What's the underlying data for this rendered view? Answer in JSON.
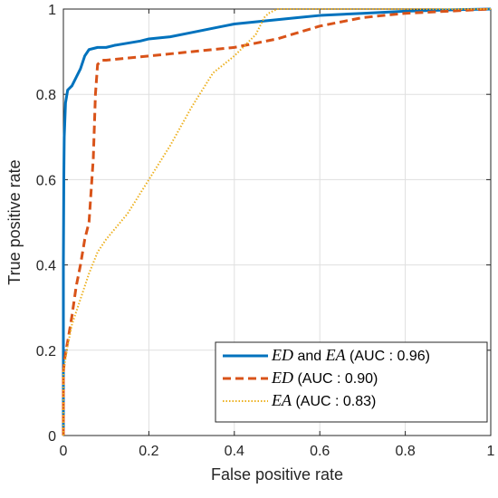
{
  "chart_data": {
    "type": "line",
    "xlabel": "False positive rate",
    "ylabel": "True positive rate",
    "xlim": [
      0,
      1
    ],
    "ylim": [
      0,
      1
    ],
    "xticks": [
      "0",
      "0.2",
      "0.4",
      "0.6",
      "0.8",
      "1"
    ],
    "yticks": [
      "0",
      "0.2",
      "0.4",
      "0.6",
      "0.8",
      "1"
    ],
    "grid": true,
    "legend_position": "bottom-right",
    "series": [
      {
        "name": "ED and EA (AUC : 0.96)",
        "legend_parts": [
          {
            "text": "ED",
            "italic": true
          },
          {
            "text": " and ",
            "italic": false
          },
          {
            "text": "EA",
            "italic": true
          },
          {
            "text": " (AUC : 0.96)",
            "italic": false
          }
        ],
        "color": "#0072BD",
        "style": "solid",
        "x": [
          0,
          0,
          0.001,
          0.002,
          0.005,
          0.01,
          0.02,
          0.03,
          0.04,
          0.05,
          0.06,
          0.08,
          0.1,
          0.12,
          0.15,
          0.18,
          0.2,
          0.25,
          0.3,
          0.35,
          0.4,
          0.45,
          0.5,
          0.55,
          0.6,
          0.7,
          0.8,
          0.9,
          1.0
        ],
        "y": [
          0,
          0.4,
          0.6,
          0.7,
          0.78,
          0.81,
          0.82,
          0.84,
          0.86,
          0.89,
          0.905,
          0.91,
          0.91,
          0.915,
          0.92,
          0.925,
          0.93,
          0.935,
          0.945,
          0.955,
          0.965,
          0.97,
          0.975,
          0.98,
          0.985,
          0.99,
          0.995,
          0.998,
          1.0
        ]
      },
      {
        "name": "ED (AUC : 0.90)",
        "legend_parts": [
          {
            "text": "ED",
            "italic": true
          },
          {
            "text": " (AUC : 0.90)",
            "italic": false
          }
        ],
        "color": "#D95319",
        "style": "dashed",
        "x": [
          0,
          0,
          0.003,
          0.01,
          0.02,
          0.03,
          0.04,
          0.05,
          0.06,
          0.07,
          0.075,
          0.08,
          0.09,
          0.1,
          0.15,
          0.2,
          0.3,
          0.4,
          0.45,
          0.5,
          0.55,
          0.6,
          0.7,
          0.8,
          0.9,
          1.0
        ],
        "y": [
          0,
          0.15,
          0.18,
          0.22,
          0.28,
          0.35,
          0.4,
          0.46,
          0.5,
          0.65,
          0.8,
          0.87,
          0.88,
          0.88,
          0.885,
          0.89,
          0.9,
          0.91,
          0.92,
          0.93,
          0.945,
          0.96,
          0.98,
          0.99,
          0.995,
          1.0
        ]
      },
      {
        "name": "EA (AUC : 0.83)",
        "legend_parts": [
          {
            "text": "EA",
            "italic": true
          },
          {
            "text": " (AUC : 0.83)",
            "italic": false
          }
        ],
        "color": "#EDB120",
        "style": "dotted",
        "x": [
          0,
          0,
          0.005,
          0.01,
          0.02,
          0.04,
          0.06,
          0.08,
          0.1,
          0.15,
          0.2,
          0.25,
          0.3,
          0.35,
          0.4,
          0.45,
          0.47,
          0.48,
          0.5,
          0.6,
          0.8,
          1.0
        ],
        "y": [
          0,
          0.15,
          0.18,
          0.21,
          0.26,
          0.32,
          0.38,
          0.43,
          0.46,
          0.52,
          0.6,
          0.68,
          0.77,
          0.85,
          0.89,
          0.94,
          0.98,
          0.99,
          1.0,
          1.0,
          1.0,
          1.0
        ]
      }
    ]
  }
}
